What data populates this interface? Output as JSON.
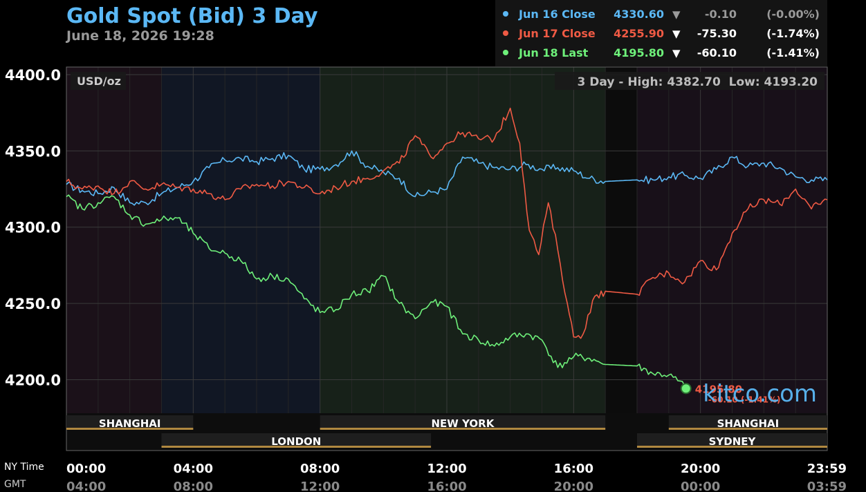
{
  "header": {
    "title": "Gold Spot (Bid) 3 Day",
    "timestamp": "June 18, 2026 19:28",
    "title_color": "#5bb8f5"
  },
  "legend": [
    {
      "label": "Jun 16 Close",
      "price": "4330.60",
      "arrow": "▼",
      "change": "-0.10",
      "pct": "(-0.00%)",
      "color": "#5bb8f5",
      "change_color": "#9a9a9a"
    },
    {
      "label": "Jun 17 Close",
      "price": "4255.90",
      "arrow": "▼",
      "change": "-75.30",
      "pct": "(-1.74%)",
      "color": "#ef5a44",
      "change_color": "#ffffff"
    },
    {
      "label": "Jun 18 Last",
      "price": "4195.80",
      "arrow": "▼",
      "change": "-60.10",
      "pct": "(-1.41%)",
      "color": "#6ef07a",
      "change_color": "#ffffff"
    }
  ],
  "unit_label": "USD/oz",
  "range_label": "3 Day - High: 4382.70  Low: 4193.20",
  "watermark": "kitco.com",
  "last_marker": {
    "price": "4195.80",
    "change": "-60.10 (-1.41%)"
  },
  "sessions": [
    {
      "name": "SHANGHAI",
      "row": 0,
      "start": 0,
      "end": 4
    },
    {
      "name": "NEW YORK",
      "row": 0,
      "start": 8,
      "end": 17
    },
    {
      "name": "SHANGHAI",
      "row": 0,
      "start": 19,
      "end": 24
    },
    {
      "name": "LONDON",
      "row": 1,
      "start": 3,
      "end": 11.5
    },
    {
      "name": "SYDNEY",
      "row": 1,
      "start": 18,
      "end": 24
    }
  ],
  "time_axis": {
    "ny_label": "NY Time",
    "gmt_label": "GMT",
    "ny_ticks": [
      "00:00",
      "04:00",
      "08:00",
      "12:00",
      "16:00",
      "20:00",
      "23:59"
    ],
    "gmt_ticks": [
      "04:00",
      "08:00",
      "12:00",
      "16:00",
      "20:00",
      "00:00",
      "03:59"
    ]
  },
  "chart_data": {
    "type": "line",
    "x_unit": "NY hour of day",
    "xlim": [
      0,
      24
    ],
    "ylim": [
      4178,
      4405
    ],
    "yticks": [
      4200,
      4250,
      4300,
      4350,
      4400
    ],
    "ytick_labels": [
      "4200.0",
      "4250.0",
      "4300.0",
      "4350.0",
      "4400.0"
    ],
    "grid": true,
    "series": [
      {
        "name": "Jun 16 Close",
        "color": "#5bb8f5",
        "points": [
          [
            0,
            4328
          ],
          [
            0.5,
            4324
          ],
          [
            1,
            4322
          ],
          [
            1.5,
            4326
          ],
          [
            2,
            4316
          ],
          [
            2.5,
            4316
          ],
          [
            3,
            4322
          ],
          [
            3.5,
            4326
          ],
          [
            4,
            4330
          ],
          [
            4.5,
            4339
          ],
          [
            5,
            4344
          ],
          [
            5.5,
            4345
          ],
          [
            6,
            4343
          ],
          [
            6.5,
            4345
          ],
          [
            7,
            4347
          ],
          [
            7.5,
            4338
          ],
          [
            8,
            4338
          ],
          [
            8.5,
            4341
          ],
          [
            9,
            4350
          ],
          [
            9.5,
            4340
          ],
          [
            10,
            4336
          ],
          [
            10.5,
            4332
          ],
          [
            11,
            4320
          ],
          [
            11.5,
            4323
          ],
          [
            12,
            4325
          ],
          [
            12.5,
            4346
          ],
          [
            13,
            4342
          ],
          [
            13.5,
            4339
          ],
          [
            14,
            4338
          ],
          [
            14.5,
            4341
          ],
          [
            15,
            4338
          ],
          [
            15.5,
            4339
          ],
          [
            16,
            4337
          ],
          [
            16.5,
            4332
          ],
          [
            17,
            4330
          ],
          [
            18,
            4331
          ],
          [
            18.5,
            4331
          ],
          [
            19,
            4333
          ],
          [
            19.5,
            4334
          ],
          [
            20,
            4332
          ],
          [
            20.5,
            4338
          ],
          [
            21,
            4346
          ],
          [
            21.5,
            4340
          ],
          [
            22,
            4342
          ],
          [
            22.5,
            4339
          ],
          [
            23,
            4333
          ],
          [
            23.5,
            4331
          ],
          [
            24,
            4331
          ]
        ]
      },
      {
        "name": "Jun 17 Close",
        "color": "#ef5a44",
        "points": [
          [
            0,
            4330
          ],
          [
            0.5,
            4325
          ],
          [
            1,
            4327
          ],
          [
            1.5,
            4322
          ],
          [
            2,
            4330
          ],
          [
            2.5,
            4325
          ],
          [
            3,
            4328
          ],
          [
            3.5,
            4326
          ],
          [
            4,
            4325
          ],
          [
            4.5,
            4322
          ],
          [
            5,
            4318
          ],
          [
            5.5,
            4325
          ],
          [
            6,
            4328
          ],
          [
            6.5,
            4327
          ],
          [
            7,
            4330
          ],
          [
            7.5,
            4326
          ],
          [
            8,
            4322
          ],
          [
            8.5,
            4326
          ],
          [
            9,
            4330
          ],
          [
            9.5,
            4332
          ],
          [
            10,
            4337
          ],
          [
            10.5,
            4342
          ],
          [
            11,
            4360
          ],
          [
            11.5,
            4346
          ],
          [
            12,
            4355
          ],
          [
            12.5,
            4362
          ],
          [
            13,
            4358
          ],
          [
            13.5,
            4358
          ],
          [
            14,
            4378
          ],
          [
            14.3,
            4355
          ],
          [
            14.6,
            4298
          ],
          [
            14.9,
            4282
          ],
          [
            15.2,
            4316
          ],
          [
            15.5,
            4285
          ],
          [
            15.8,
            4250
          ],
          [
            16,
            4228
          ],
          [
            16.3,
            4230
          ],
          [
            16.6,
            4252
          ],
          [
            17,
            4258
          ],
          [
            18,
            4256
          ],
          [
            18.5,
            4267
          ],
          [
            19,
            4270
          ],
          [
            19.5,
            4264
          ],
          [
            20,
            4278
          ],
          [
            20.5,
            4272
          ],
          [
            21,
            4296
          ],
          [
            21.5,
            4312
          ],
          [
            22,
            4318
          ],
          [
            22.5,
            4315
          ],
          [
            23,
            4325
          ],
          [
            23.5,
            4312
          ],
          [
            24,
            4318
          ]
        ]
      },
      {
        "name": "Jun 18 Last",
        "color": "#6ef07a",
        "points": [
          [
            0,
            4320
          ],
          [
            0.5,
            4312
          ],
          [
            1,
            4316
          ],
          [
            1.5,
            4320
          ],
          [
            2,
            4308
          ],
          [
            2.5,
            4302
          ],
          [
            3,
            4305
          ],
          [
            3.5,
            4306
          ],
          [
            4,
            4296
          ],
          [
            4.5,
            4286
          ],
          [
            5,
            4283
          ],
          [
            5.5,
            4278
          ],
          [
            6,
            4266
          ],
          [
            6.5,
            4268
          ],
          [
            7,
            4266
          ],
          [
            7.5,
            4253
          ],
          [
            8,
            4244
          ],
          [
            8.5,
            4246
          ],
          [
            9,
            4256
          ],
          [
            9.5,
            4258
          ],
          [
            10,
            4268
          ],
          [
            10.5,
            4250
          ],
          [
            11,
            4240
          ],
          [
            11.5,
            4251
          ],
          [
            12,
            4248
          ],
          [
            12.5,
            4230
          ],
          [
            13,
            4226
          ],
          [
            13.5,
            4222
          ],
          [
            14,
            4228
          ],
          [
            14.5,
            4230
          ],
          [
            15,
            4226
          ],
          [
            15.5,
            4208
          ],
          [
            16,
            4215
          ],
          [
            16.5,
            4214
          ],
          [
            17,
            4210
          ],
          [
            18,
            4209
          ],
          [
            18.5,
            4204
          ],
          [
            19,
            4203
          ],
          [
            19.5,
            4196
          ]
        ]
      }
    ]
  }
}
